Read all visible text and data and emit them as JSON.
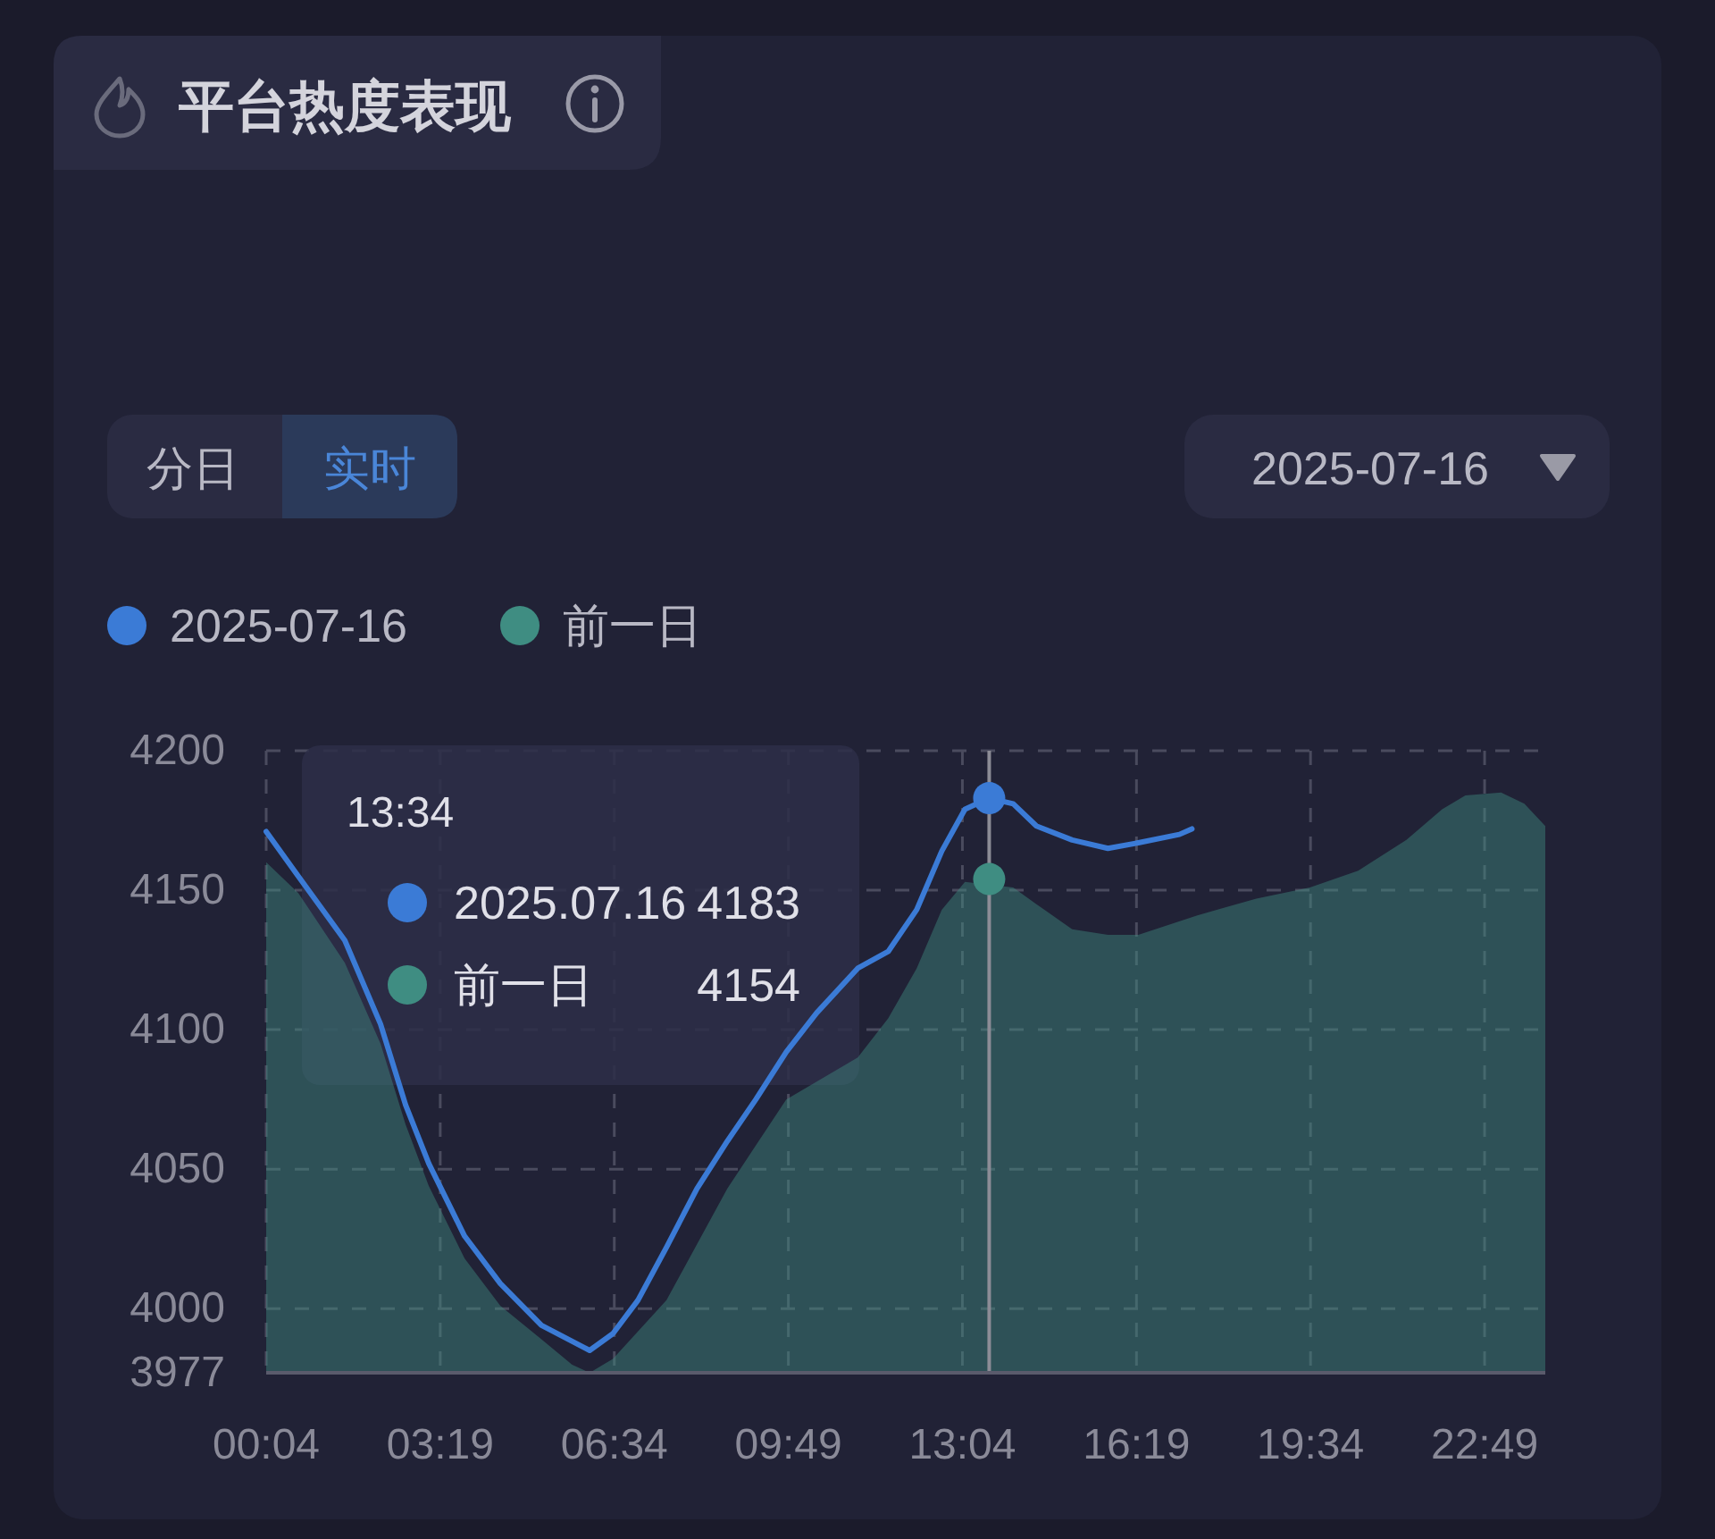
{
  "chart_data": {
    "type": "line",
    "title": "平台热度表现",
    "legend": "top left",
    "grid": true,
    "xlim": [
      0.0667,
      23.95
    ],
    "xticks": [
      {
        "value": 0.0667,
        "label": "00:04"
      },
      {
        "value": 3.3167,
        "label": "03:19"
      },
      {
        "value": 6.5667,
        "label": "06:34"
      },
      {
        "value": 9.8167,
        "label": "09:49"
      },
      {
        "value": 13.0667,
        "label": "13:04"
      },
      {
        "value": 16.3167,
        "label": "16:19"
      },
      {
        "value": 19.5667,
        "label": "19:34"
      },
      {
        "value": 22.8167,
        "label": "22:49"
      }
    ],
    "ylim": [
      3977,
      4200
    ],
    "yticks": [
      3977,
      4000,
      4050,
      4100,
      4150,
      4200
    ],
    "series": [
      {
        "name": "2025-07-16",
        "type": "line",
        "color": "#3b7bd6",
        "x": [
          0.067,
          0.667,
          1.535,
          2.202,
          2.67,
          3.103,
          3.771,
          4.438,
          5.206,
          6.006,
          6.107,
          6.54,
          7.008,
          7.541,
          8.109,
          8.676,
          9.21,
          9.777,
          10.345,
          11.112,
          11.68,
          12.213,
          12.681,
          13.114,
          13.5667,
          14.015,
          14.449,
          15.116,
          15.784,
          16.351,
          17.119,
          17.352
        ],
        "values": [
          4171,
          4155,
          4132,
          4102,
          4073,
          4052,
          4026,
          4009,
          3994,
          3986,
          3985,
          3991,
          4003,
          4022,
          4043,
          4060,
          4075,
          4092,
          4106,
          4122,
          4128,
          4143,
          4164,
          4179,
          4183,
          4181,
          4173,
          4168,
          4165,
          4167,
          4170,
          4172
        ]
      },
      {
        "name": "前一日",
        "type": "area",
        "color": "#3f8d82",
        "x": [
          0.067,
          0.667,
          1.535,
          2.202,
          2.67,
          3.103,
          3.771,
          4.438,
          5.206,
          5.773,
          6.107,
          6.54,
          7.541,
          8.676,
          9.777,
          11.112,
          11.68,
          12.213,
          12.681,
          13.114,
          14.015,
          14.449,
          15.116,
          15.784,
          16.351,
          17.453,
          18.554,
          19.555,
          20.456,
          21.357,
          22.024,
          22.458,
          23.125,
          23.559,
          23.95
        ],
        "values": [
          4160,
          4149,
          4124,
          4095,
          4066,
          4044,
          4018,
          4001,
          3989,
          3980,
          3977,
          3982,
          4003,
          4043,
          4075,
          4090,
          4104,
          4122,
          4143,
          4153,
          4151,
          4145,
          4136,
          4134,
          4134,
          4141,
          4147,
          4151,
          4157,
          4168,
          4179,
          4184,
          4185,
          4181,
          4173
        ]
      },
      {
        "type": "scatter",
        "colors": [
          "#3b7bd6",
          "#3f8d82"
        ],
        "x": [
          13.5667,
          13.5667
        ],
        "values": [
          4183,
          4154
        ]
      }
    ],
    "ref_lines": [
      {
        "axis": "x",
        "value": 13.5667,
        "color": "#8c8c96"
      }
    ],
    "annotations": [
      "分日",
      "实时",
      "2025-07-16",
      "13:34",
      "2025.07.16 4183",
      "前一日 4154"
    ]
  }
}
